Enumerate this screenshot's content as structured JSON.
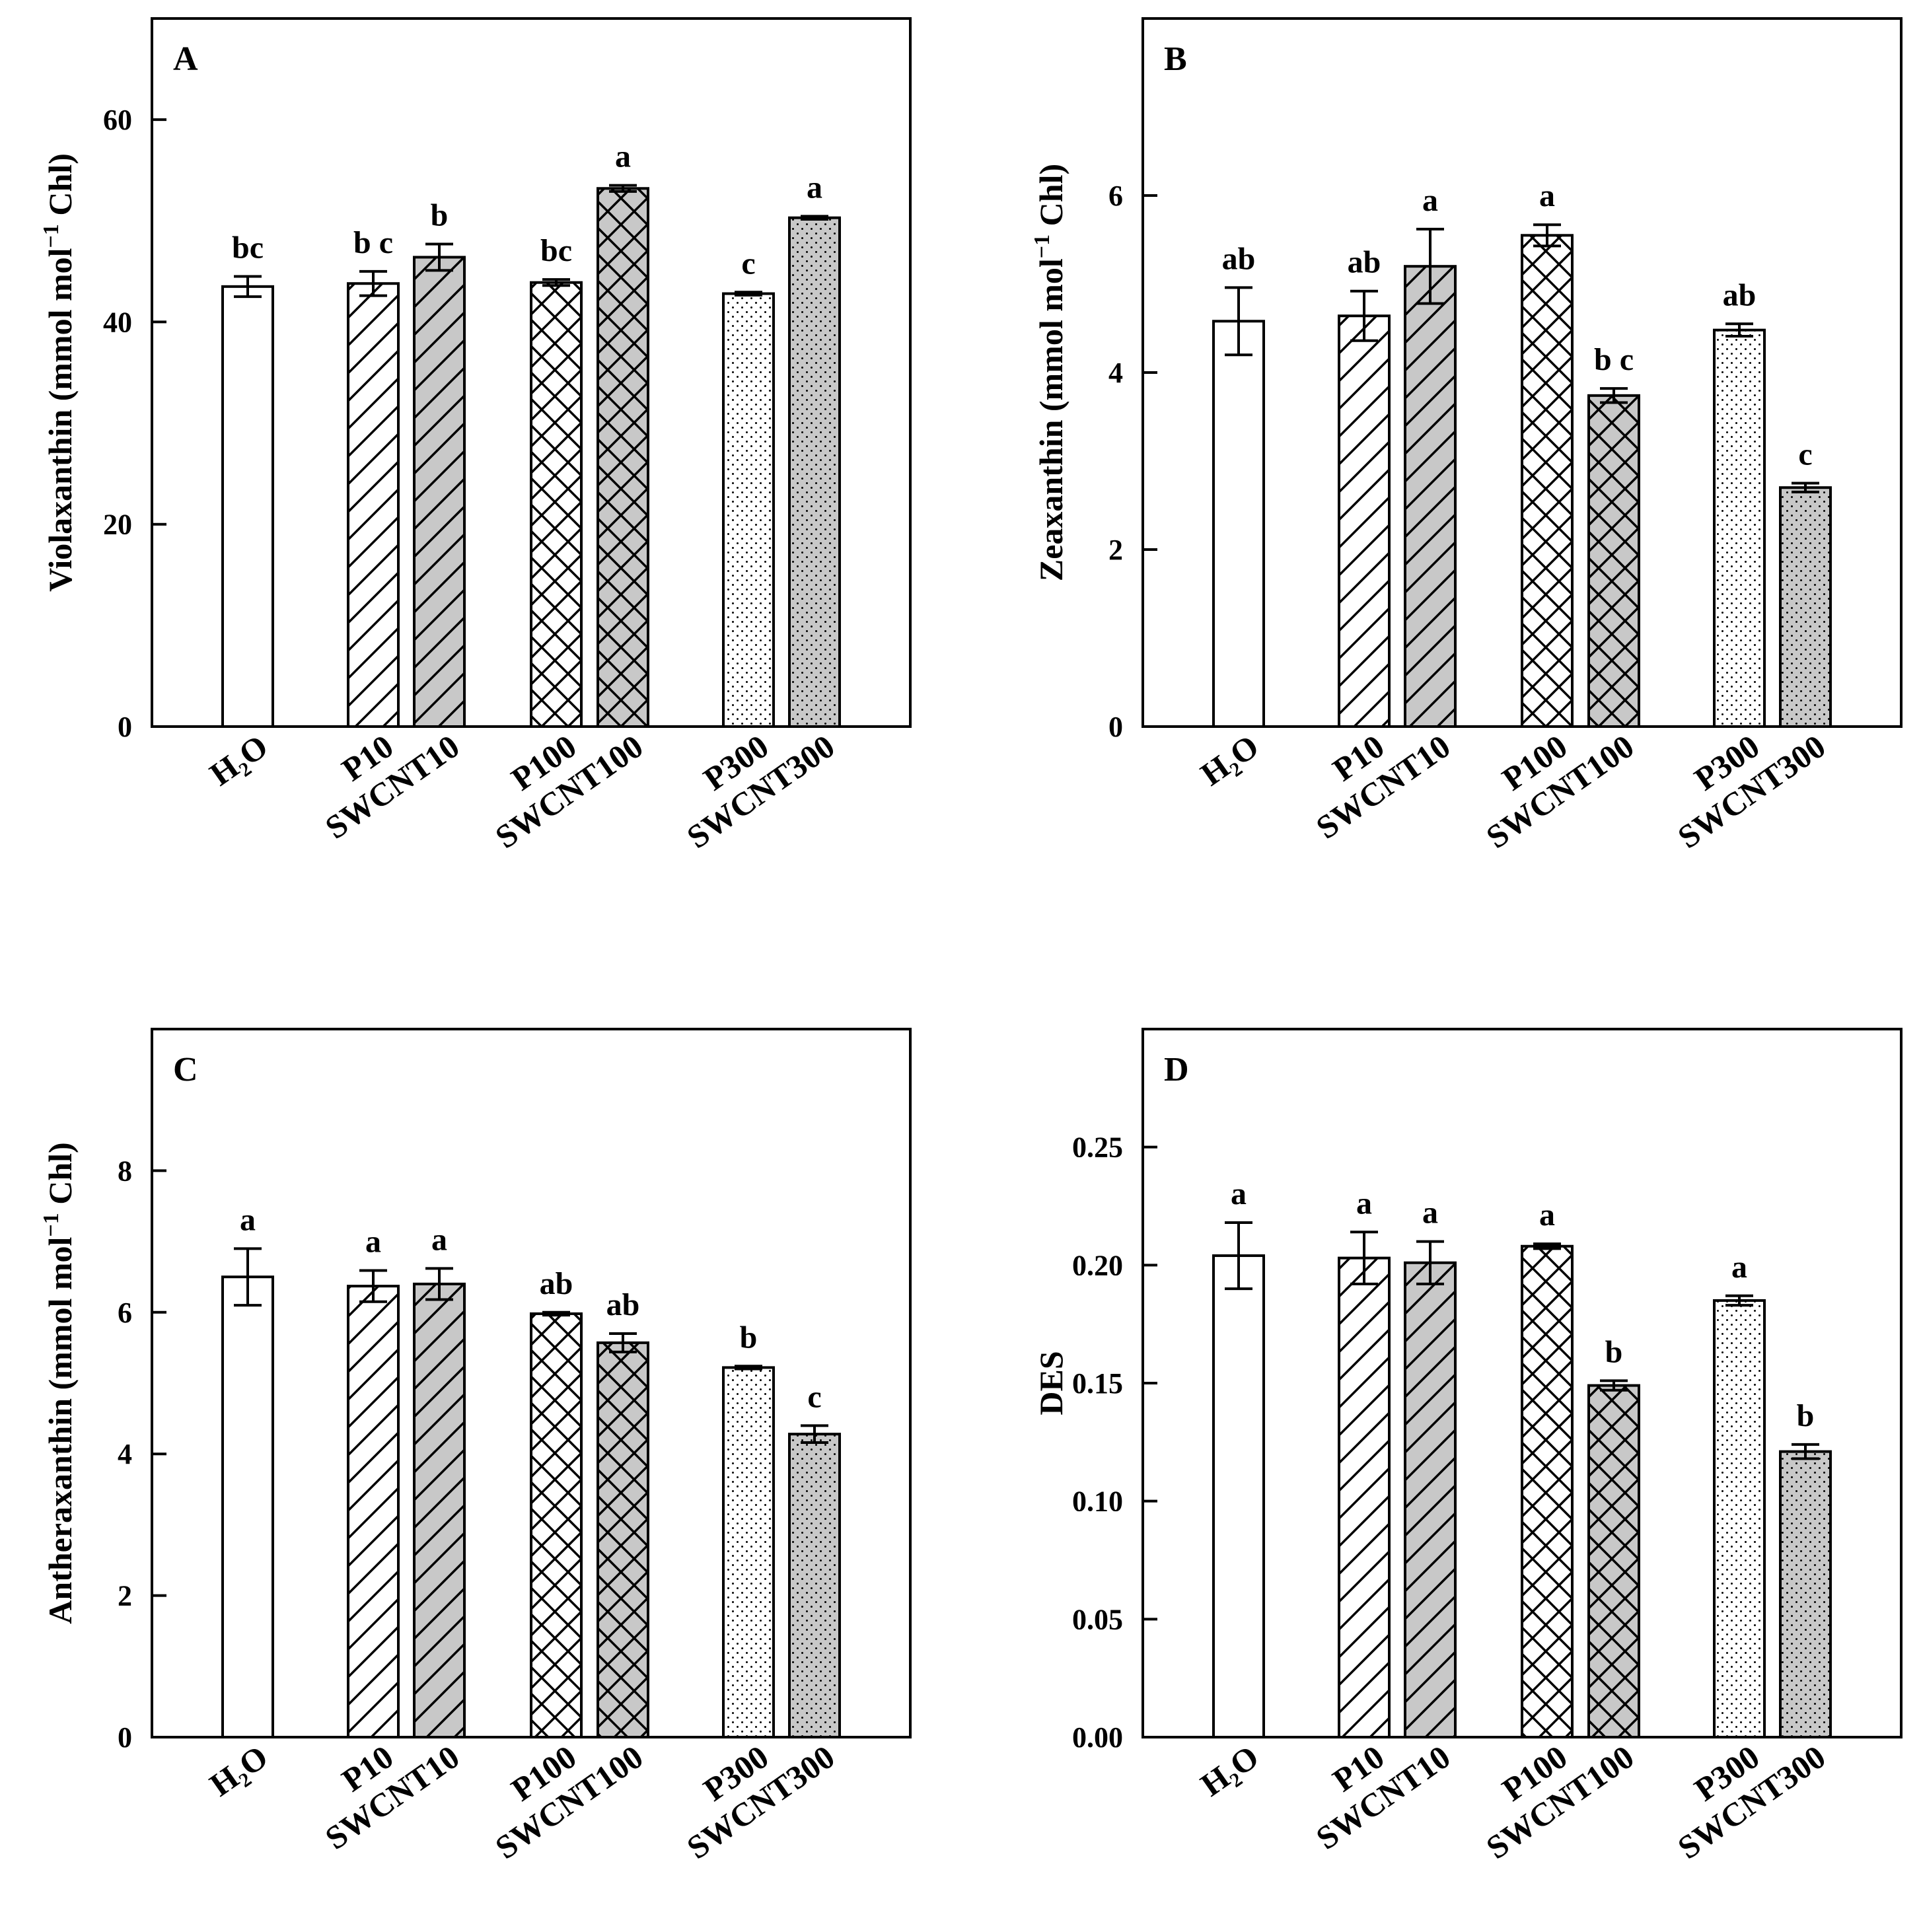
{
  "colors": {
    "white": "#ffffff",
    "gray": "#c8c8c8",
    "ink": "#000000"
  },
  "chart_data": [
    {
      "panel": "A",
      "type": "bar",
      "ylabel": "Violaxanthin (mmol mol",
      "ylabel_sup": "−1",
      "ylabel_end": " Chl)",
      "ylim": [
        0,
        70
      ],
      "yticks": [
        0,
        20,
        40,
        60
      ],
      "tick_decimals": 0,
      "categories": [
        "H₂O",
        "P10",
        "SWCNT10",
        "P100",
        "SWCNT100",
        "P300",
        "SWCNT300"
      ],
      "patterns": [
        "none",
        "diag",
        "diag",
        "cross",
        "cross",
        "dots",
        "dots"
      ],
      "fills": [
        "white",
        "white",
        "gray",
        "white",
        "gray",
        "white",
        "gray"
      ],
      "values": [
        43.5,
        43.8,
        46.4,
        43.9,
        53.2,
        42.8,
        50.3
      ],
      "errors": [
        1.0,
        1.2,
        1.3,
        0.3,
        0.3,
        0.15,
        0.15
      ],
      "letters": [
        "bc",
        "b c",
        "b",
        "bc",
        "a",
        "c",
        "a"
      ]
    },
    {
      "panel": "B",
      "type": "bar",
      "ylabel": "Zeaxanthin (mmol mol",
      "ylabel_sup": "−1",
      "ylabel_end": " Chl)",
      "ylim": [
        0,
        8
      ],
      "yticks": [
        0,
        2,
        4,
        6
      ],
      "tick_decimals": 0,
      "categories": [
        "H₂O",
        "P10",
        "SWCNT10",
        "P100",
        "SWCNT100",
        "P300",
        "SWCNT300"
      ],
      "patterns": [
        "none",
        "diag",
        "diag",
        "cross",
        "cross",
        "dots",
        "dots"
      ],
      "fills": [
        "white",
        "white",
        "gray",
        "white",
        "gray",
        "white",
        "gray"
      ],
      "values": [
        4.58,
        4.64,
        5.2,
        5.55,
        3.74,
        4.48,
        2.7
      ],
      "errors": [
        0.38,
        0.28,
        0.42,
        0.12,
        0.08,
        0.07,
        0.05
      ],
      "letters": [
        "ab",
        "ab",
        "a",
        "a",
        "b c",
        "ab",
        "c"
      ]
    },
    {
      "panel": "C",
      "type": "bar",
      "ylabel": "Antheraxanthin (mmol mol",
      "ylabel_sup": "−1",
      "ylabel_end": " Chl)",
      "ylim": [
        0,
        10
      ],
      "yticks": [
        0,
        2,
        4,
        6,
        8
      ],
      "tick_decimals": 0,
      "categories": [
        "H₂O",
        "P10",
        "SWCNT10",
        "P100",
        "SWCNT100",
        "P300",
        "SWCNT300"
      ],
      "patterns": [
        "none",
        "diag",
        "diag",
        "cross",
        "cross",
        "dots",
        "dots"
      ],
      "fills": [
        "white",
        "white",
        "gray",
        "white",
        "gray",
        "white",
        "gray"
      ],
      "values": [
        6.5,
        6.37,
        6.4,
        5.98,
        5.57,
        5.22,
        4.28
      ],
      "errors": [
        0.4,
        0.22,
        0.22,
        0.02,
        0.13,
        0.02,
        0.12
      ],
      "letters": [
        "a",
        "a",
        "a",
        "ab",
        "ab",
        "b",
        "c"
      ]
    },
    {
      "panel": "D",
      "type": "bar",
      "ylabel": "DES",
      "ylabel_sup": "",
      "ylabel_end": "",
      "ylim": [
        0,
        0.3
      ],
      "yticks": [
        0.0,
        0.05,
        0.1,
        0.15,
        0.2,
        0.25
      ],
      "tick_decimals": 2,
      "categories": [
        "H₂O",
        "P10",
        "SWCNT10",
        "P100",
        "SWCNT100",
        "P300",
        "SWCNT300"
      ],
      "patterns": [
        "none",
        "diag",
        "diag",
        "cross",
        "cross",
        "dots",
        "dots"
      ],
      "fills": [
        "white",
        "white",
        "gray",
        "white",
        "gray",
        "white",
        "gray"
      ],
      "values": [
        0.204,
        0.203,
        0.201,
        0.208,
        0.149,
        0.185,
        0.121
      ],
      "errors": [
        0.014,
        0.011,
        0.009,
        0.001,
        0.002,
        0.002,
        0.003
      ],
      "letters": [
        "a",
        "a",
        "a",
        "a",
        "b",
        "a",
        "b"
      ]
    }
  ]
}
